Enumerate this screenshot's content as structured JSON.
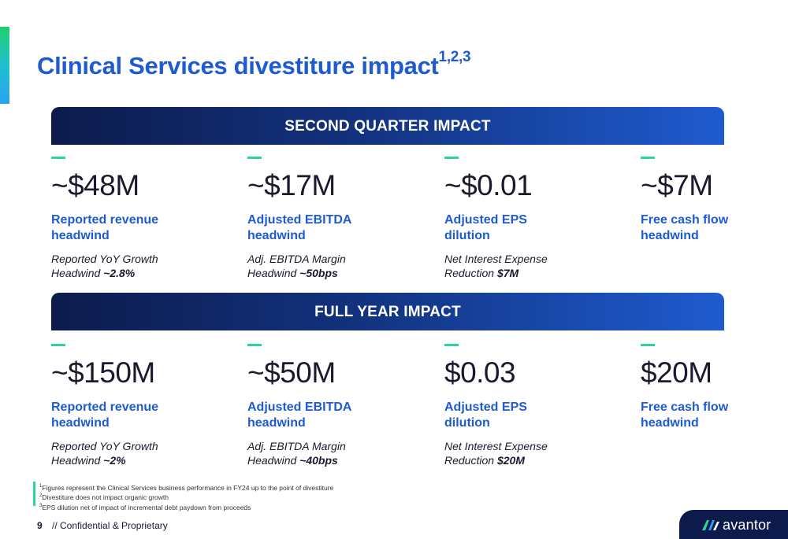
{
  "page": {
    "title": "Clinical Services divestiture impact",
    "title_sup": "1,2,3",
    "page_number": "9",
    "confidential": "// Confidential & Proprietary",
    "brand": "avantor",
    "colors": {
      "accent_blue": "#1f5bd0",
      "navy": "#0d1b4c",
      "dash_green": "#2bd3a0"
    }
  },
  "second_quarter": {
    "heading": "SECOND QUARTER IMPACT",
    "metrics": [
      {
        "value": "~$48M",
        "label_line1": "Reported revenue",
        "label_line2": "headwind",
        "sub_line1": "Reported YoY Growth",
        "sub_line2_prefix": "Headwind ",
        "sub_line2_bold": "~2.8%"
      },
      {
        "value": "~$17M",
        "label_line1": "Adjusted EBITDA",
        "label_line2": "headwind",
        "sub_line1": "Adj. EBITDA Margin",
        "sub_line2_prefix": "Headwind ",
        "sub_line2_bold": "~50bps"
      },
      {
        "value": "~$0.01",
        "label_line1": "Adjusted EPS",
        "label_line2": "dilution",
        "sub_line1": "Net Interest Expense",
        "sub_line2_prefix": "Reduction ",
        "sub_line2_bold": "$7M"
      },
      {
        "value": "~$7M",
        "label_line1": "Free cash flow",
        "label_line2": "headwind",
        "sub_line1": "",
        "sub_line2_prefix": "",
        "sub_line2_bold": ""
      }
    ]
  },
  "full_year": {
    "heading": "FULL YEAR IMPACT",
    "metrics": [
      {
        "value": "~$150M",
        "label_line1": "Reported revenue",
        "label_line2": "headwind",
        "sub_line1": "Reported YoY Growth",
        "sub_line2_prefix": "Headwind ",
        "sub_line2_bold": "~2%"
      },
      {
        "value": "~$50M",
        "label_line1": "Adjusted EBITDA",
        "label_line2": "headwind",
        "sub_line1": "Adj. EBITDA Margin",
        "sub_line2_prefix": "Headwind ",
        "sub_line2_bold": "~40bps"
      },
      {
        "value": "$0.03",
        "label_line1": "Adjusted EPS",
        "label_line2": "dilution",
        "sub_line1": "Net Interest Expense",
        "sub_line2_prefix": "Reduction ",
        "sub_line2_bold": "$20M"
      },
      {
        "value": "$20M",
        "label_line1": "Free cash flow",
        "label_line2": "headwind",
        "sub_line1": "",
        "sub_line2_prefix": "",
        "sub_line2_bold": ""
      }
    ]
  },
  "footnotes": [
    {
      "num": "1",
      "text": "Figures represent the Clinical Services business performance in FY24 up to the point of divestiture"
    },
    {
      "num": "2",
      "text": "Divestiture does not impact organic growth"
    },
    {
      "num": "3",
      "text": "EPS dilution net of impact of incremental debt paydown from proceeds"
    }
  ]
}
